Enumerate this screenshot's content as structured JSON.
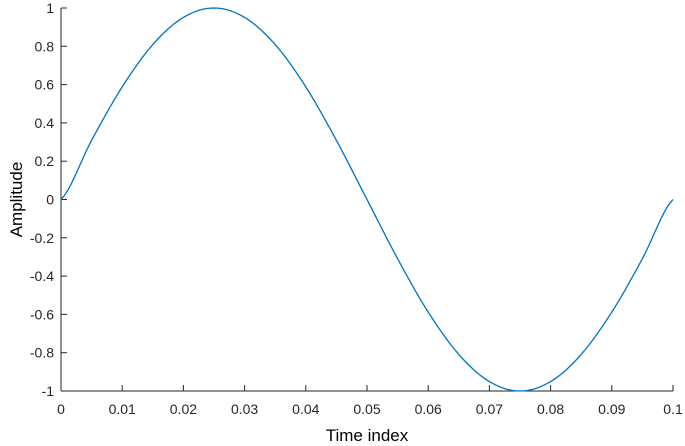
{
  "chart_data": {
    "type": "line",
    "title": "",
    "xlabel": "Time index",
    "ylabel": "Amplitude",
    "xlim": [
      0,
      0.1
    ],
    "ylim": [
      -1,
      1
    ],
    "grid": false,
    "x_ticks": [
      0,
      0.01,
      0.02,
      0.03,
      0.04,
      0.05,
      0.06,
      0.07,
      0.08,
      0.09,
      0.1
    ],
    "x_tick_labels": [
      "0",
      "0.01",
      "0.02",
      "0.03",
      "0.04",
      "0.05",
      "0.06",
      "0.07",
      "0.08",
      "0.09",
      "0.1"
    ],
    "y_ticks": [
      1,
      0.8,
      0.6,
      0.4,
      0.2,
      0,
      -0.2,
      -0.4,
      -0.6,
      -0.8,
      -1
    ],
    "y_tick_labels": [
      "1",
      "0.8",
      "0.6",
      "0.4",
      "0.2",
      "0",
      "-0.2",
      "-0.4",
      "-0.6",
      "-0.8",
      "-1"
    ],
    "series": [
      {
        "color": "#0072bd",
        "x": [
          0,
          0.005,
          0.01,
          0.015,
          0.02,
          0.025,
          0.03,
          0.035,
          0.04,
          0.045,
          0.05,
          0.055,
          0.06,
          0.065,
          0.07,
          0.075,
          0.08,
          0.085,
          0.09,
          0.095,
          0.1
        ],
        "y": [
          0,
          0.309,
          0.588,
          0.809,
          0.951,
          1,
          0.951,
          0.809,
          0.588,
          0.309,
          0,
          -0.309,
          -0.588,
          -0.809,
          -0.951,
          -1,
          -0.951,
          -0.809,
          -0.588,
          -0.309,
          0
        ]
      }
    ]
  }
}
